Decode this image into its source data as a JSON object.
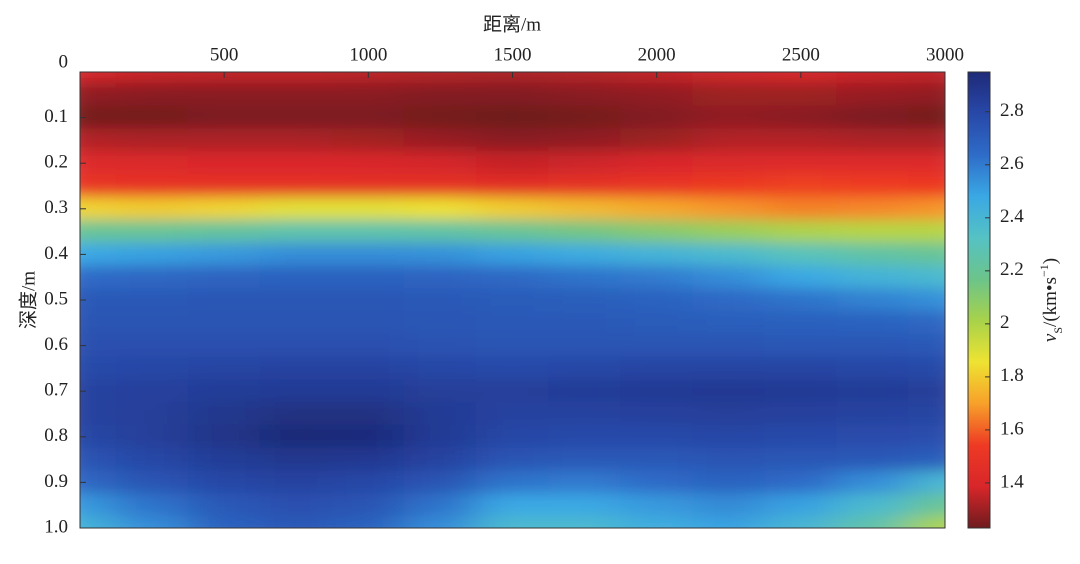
{
  "chart_data": {
    "type": "heatmap",
    "x_label": "距离/m",
    "y_label": "深度/m",
    "colorbar_label": [
      "v",
      "S",
      "/(km•s",
      "−1",
      ")"
    ],
    "x": [
      0,
      250,
      500,
      750,
      1000,
      1250,
      1500,
      1750,
      2000,
      2250,
      2500,
      2750,
      3000
    ],
    "y": [
      0,
      0.05,
      0.1,
      0.15,
      0.2,
      0.25,
      0.3,
      0.35,
      0.4,
      0.45,
      0.5,
      0.55,
      0.6,
      0.65,
      0.7,
      0.75,
      0.8,
      0.85,
      0.9,
      0.95,
      1.0
    ],
    "z": [
      [
        1.38,
        1.36,
        1.35,
        1.35,
        1.34,
        1.33,
        1.32,
        1.33,
        1.35,
        1.37,
        1.38,
        1.36,
        1.35
      ],
      [
        1.28,
        1.27,
        1.27,
        1.27,
        1.27,
        1.26,
        1.26,
        1.27,
        1.28,
        1.3,
        1.3,
        1.29,
        1.28
      ],
      [
        1.24,
        1.24,
        1.25,
        1.25,
        1.25,
        1.24,
        1.23,
        1.24,
        1.26,
        1.28,
        1.27,
        1.25,
        1.24
      ],
      [
        1.33,
        1.32,
        1.32,
        1.32,
        1.31,
        1.29,
        1.27,
        1.28,
        1.3,
        1.33,
        1.33,
        1.32,
        1.32
      ],
      [
        1.42,
        1.41,
        1.4,
        1.4,
        1.39,
        1.38,
        1.36,
        1.37,
        1.39,
        1.41,
        1.42,
        1.42,
        1.42
      ],
      [
        1.5,
        1.49,
        1.48,
        1.48,
        1.47,
        1.47,
        1.46,
        1.48,
        1.5,
        1.53,
        1.55,
        1.54,
        1.53
      ],
      [
        1.82,
        1.8,
        1.82,
        1.88,
        1.88,
        1.85,
        1.8,
        1.76,
        1.72,
        1.68,
        1.65,
        1.66,
        1.68
      ],
      [
        2.2,
        2.2,
        2.22,
        2.26,
        2.26,
        2.24,
        2.2,
        2.15,
        2.1,
        2.05,
        2.0,
        1.98,
        1.98
      ],
      [
        2.48,
        2.5,
        2.52,
        2.55,
        2.55,
        2.54,
        2.5,
        2.46,
        2.42,
        2.38,
        2.3,
        2.24,
        2.2
      ],
      [
        2.64,
        2.66,
        2.67,
        2.68,
        2.68,
        2.67,
        2.65,
        2.62,
        2.6,
        2.55,
        2.48,
        2.42,
        2.38
      ],
      [
        2.72,
        2.72,
        2.73,
        2.73,
        2.73,
        2.72,
        2.71,
        2.7,
        2.68,
        2.65,
        2.62,
        2.58,
        2.54
      ],
      [
        2.74,
        2.74,
        2.74,
        2.74,
        2.74,
        2.73,
        2.72,
        2.72,
        2.71,
        2.7,
        2.69,
        2.68,
        2.66
      ],
      [
        2.76,
        2.76,
        2.76,
        2.76,
        2.76,
        2.75,
        2.74,
        2.74,
        2.74,
        2.74,
        2.73,
        2.73,
        2.72
      ],
      [
        2.79,
        2.8,
        2.81,
        2.82,
        2.82,
        2.8,
        2.79,
        2.8,
        2.81,
        2.81,
        2.81,
        2.8,
        2.79
      ],
      [
        2.82,
        2.83,
        2.85,
        2.86,
        2.86,
        2.84,
        2.84,
        2.85,
        2.86,
        2.87,
        2.86,
        2.85,
        2.84
      ],
      [
        2.82,
        2.84,
        2.88,
        2.92,
        2.92,
        2.86,
        2.82,
        2.82,
        2.83,
        2.84,
        2.83,
        2.82,
        2.81
      ],
      [
        2.8,
        2.84,
        2.9,
        2.95,
        2.94,
        2.86,
        2.8,
        2.79,
        2.79,
        2.8,
        2.79,
        2.78,
        2.77
      ],
      [
        2.74,
        2.8,
        2.85,
        2.88,
        2.87,
        2.82,
        2.74,
        2.72,
        2.72,
        2.74,
        2.73,
        2.72,
        2.7
      ],
      [
        2.66,
        2.74,
        2.8,
        2.82,
        2.8,
        2.74,
        2.62,
        2.6,
        2.64,
        2.68,
        2.64,
        2.55,
        2.4
      ],
      [
        2.52,
        2.62,
        2.72,
        2.76,
        2.74,
        2.62,
        2.48,
        2.48,
        2.52,
        2.56,
        2.5,
        2.38,
        2.2
      ],
      [
        2.42,
        2.55,
        2.68,
        2.72,
        2.68,
        2.55,
        2.38,
        2.38,
        2.45,
        2.5,
        2.4,
        2.25,
        2.0
      ]
    ],
    "xlim": [
      0,
      3000
    ],
    "xticks": [
      500,
      1000,
      1500,
      2000,
      2500,
      3000
    ],
    "ylim": [
      0,
      1
    ],
    "yticks": [
      0,
      0.1,
      0.2,
      0.3,
      0.4,
      0.5,
      0.6,
      0.7,
      0.8,
      0.9,
      {
        "value": 1,
        "label": "1.0"
      }
    ],
    "y_inverted": true,
    "zlim": [
      1.23,
      2.95
    ],
    "zticks": [
      1.4,
      1.6,
      1.8,
      2.0,
      2.2,
      2.4,
      2.6,
      2.8
    ],
    "colormap": [
      "#6e1b1e",
      "#d8262a",
      "#ee3a24",
      "#f7a02a",
      "#eee332",
      "#a8d24a",
      "#6cc48a",
      "#55c2c4",
      "#3aa8e4",
      "#2e6cc8",
      "#2848a8",
      "#1e2a78"
    ]
  }
}
